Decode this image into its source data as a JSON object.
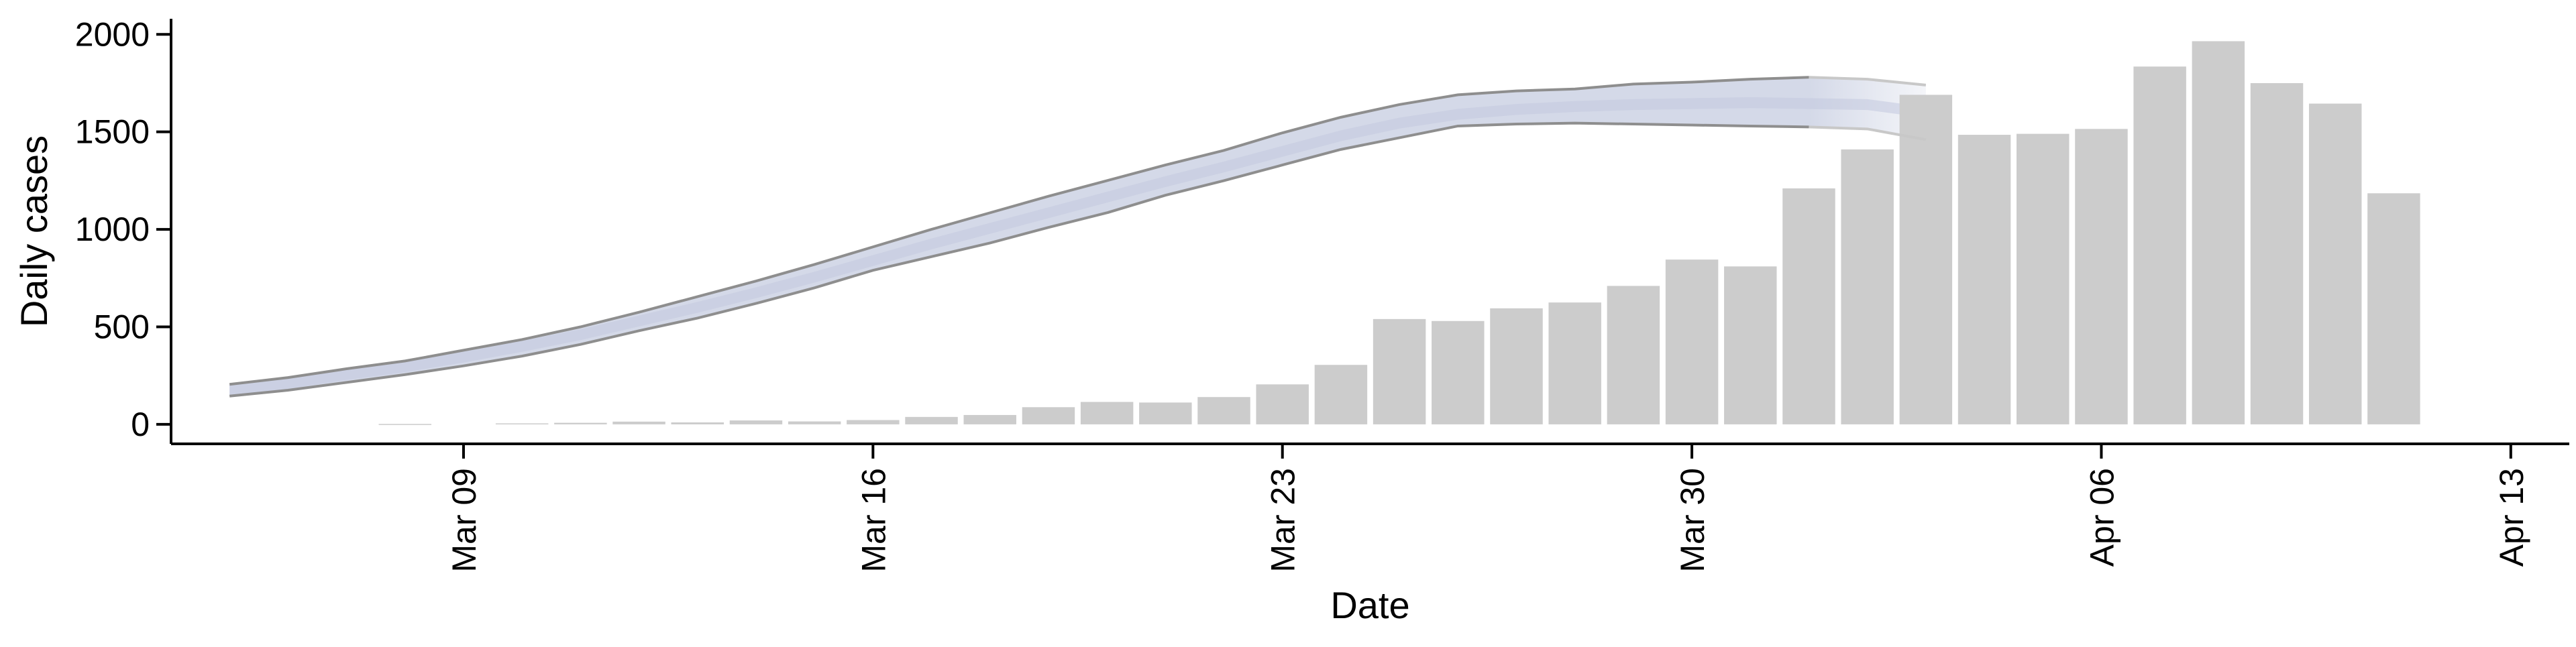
{
  "chart_data": {
    "type": "bar",
    "xlabel": "Date",
    "ylabel": "Daily cases",
    "ylim": [
      -100,
      2080
    ],
    "y_ticks": [
      0,
      500,
      1000,
      1500,
      2000
    ],
    "x_ticks": [
      {
        "date": "2020-03-09",
        "label": "Mar 09"
      },
      {
        "date": "2020-03-16",
        "label": "Mar 16"
      },
      {
        "date": "2020-03-23",
        "label": "Mar 23"
      },
      {
        "date": "2020-03-30",
        "label": "Mar 30"
      },
      {
        "date": "2020-04-06",
        "label": "Apr 06"
      },
      {
        "date": "2020-04-13",
        "label": "Apr 13"
      }
    ],
    "xlim": [
      "2020-03-04",
      "2020-04-14"
    ],
    "bar_color": "#cccccc",
    "band_color": "#d4d9e8",
    "band_edge_color": "#999999",
    "grid": false,
    "bars": {
      "dates": [
        "2020-03-08",
        "2020-03-09",
        "2020-03-10",
        "2020-03-11",
        "2020-03-12",
        "2020-03-13",
        "2020-03-14",
        "2020-03-15",
        "2020-03-16",
        "2020-03-17",
        "2020-03-18",
        "2020-03-19",
        "2020-03-20",
        "2020-03-21",
        "2020-03-22",
        "2020-03-23",
        "2020-03-24",
        "2020-03-25",
        "2020-03-26",
        "2020-03-27",
        "2020-03-28",
        "2020-03-29",
        "2020-03-30",
        "2020-03-31",
        "2020-04-01",
        "2020-04-02",
        "2020-04-03",
        "2020-04-04",
        "2020-04-05",
        "2020-04-06",
        "2020-04-07",
        "2020-04-08",
        "2020-04-09",
        "2020-04-10",
        "2020-04-11",
        "2020-04-12"
      ],
      "values": [
        2,
        0,
        5,
        8,
        14,
        10,
        20,
        15,
        22,
        38,
        48,
        88,
        115,
        112,
        140,
        205,
        305,
        540,
        530,
        595,
        625,
        710,
        845,
        810,
        1210,
        1410,
        1690,
        1485,
        1490,
        1515,
        1835,
        1965,
        1750,
        1645,
        1185,
        0
      ]
    },
    "estimate": {
      "dates": [
        "2020-03-05",
        "2020-03-06",
        "2020-03-07",
        "2020-03-08",
        "2020-03-09",
        "2020-03-10",
        "2020-03-11",
        "2020-03-12",
        "2020-03-13",
        "2020-03-14",
        "2020-03-15",
        "2020-03-16",
        "2020-03-17",
        "2020-03-18",
        "2020-03-19",
        "2020-03-20",
        "2020-03-21",
        "2020-03-22",
        "2020-03-23",
        "2020-03-24",
        "2020-03-25",
        "2020-03-26",
        "2020-03-27",
        "2020-03-28",
        "2020-03-29",
        "2020-03-30",
        "2020-03-31",
        "2020-04-01",
        "2020-04-02",
        "2020-04-03"
      ],
      "upper": [
        205,
        240,
        285,
        325,
        380,
        435,
        500,
        575,
        655,
        735,
        820,
        910,
        1000,
        1085,
        1170,
        1250,
        1330,
        1405,
        1495,
        1575,
        1640,
        1690,
        1710,
        1720,
        1745,
        1755,
        1770,
        1780,
        1770,
        1740
      ],
      "median": [
        175,
        210,
        255,
        295,
        345,
        400,
        460,
        530,
        600,
        675,
        755,
        840,
        925,
        1005,
        1085,
        1165,
        1245,
        1320,
        1400,
        1480,
        1545,
        1590,
        1615,
        1630,
        1640,
        1645,
        1650,
        1645,
        1640,
        1600
      ],
      "lower": [
        145,
        175,
        215,
        255,
        300,
        350,
        410,
        480,
        545,
        620,
        700,
        790,
        860,
        930,
        1010,
        1085,
        1175,
        1250,
        1330,
        1410,
        1470,
        1530,
        1540,
        1545,
        1540,
        1535,
        1530,
        1525,
        1515,
        1460
      ],
      "fade_from": "2020-04-01"
    }
  }
}
